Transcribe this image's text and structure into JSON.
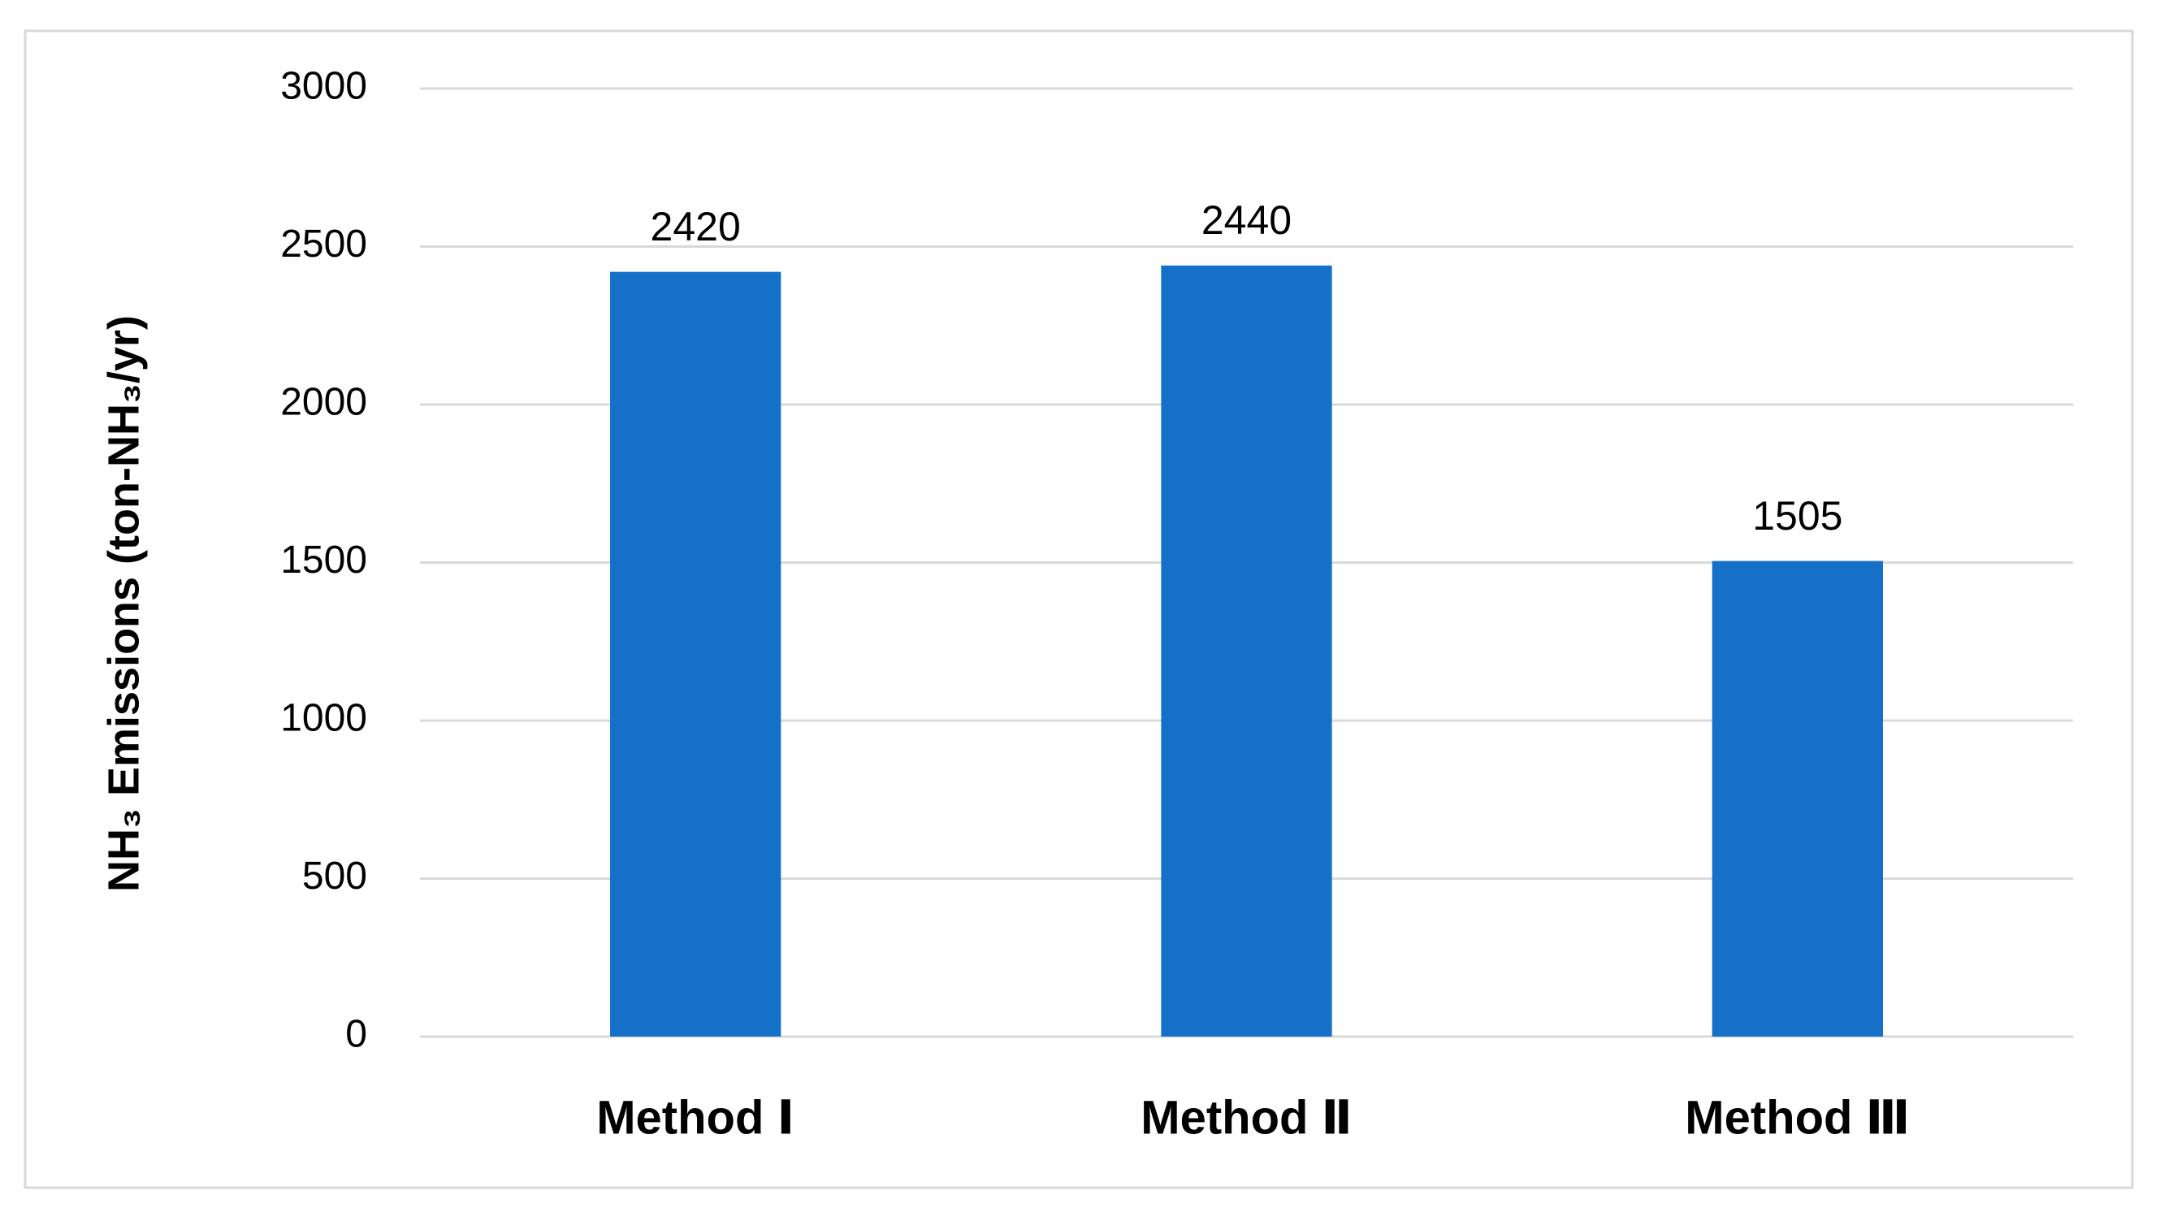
{
  "chart_data": {
    "type": "bar",
    "y_label": "NH₃ Emissions (ton-NH₃/yr)",
    "categories": [
      "Method Ⅰ",
      "Method Ⅱ",
      "Method Ⅲ"
    ],
    "values": [
      2420,
      2440,
      1505
    ],
    "color": "#1570c8",
    "ylim": [
      0,
      3000
    ],
    "yticks": [
      0,
      500,
      1000,
      1500,
      2000,
      2500,
      3000
    ],
    "grid": true
  }
}
